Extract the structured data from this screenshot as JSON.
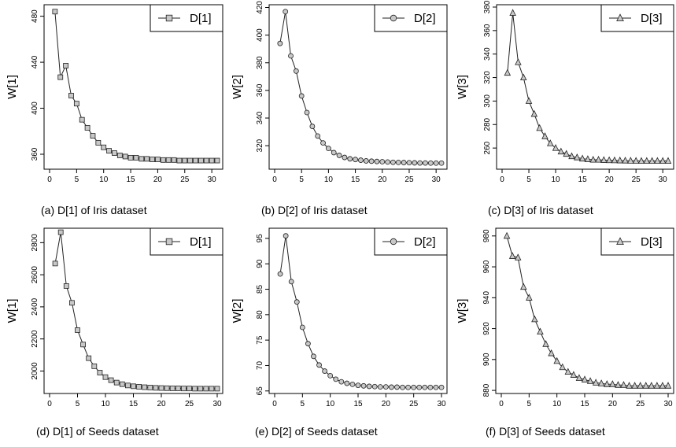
{
  "chart_data": [
    {
      "type": "line",
      "caption": "(a) D[1] of Iris dataset",
      "ylabel": "W[1]",
      "legend": "D[1]",
      "marker": "square",
      "xlim": [
        0,
        31
      ],
      "ylim": [
        347,
        490
      ],
      "xticks": [
        0,
        5,
        10,
        15,
        20,
        25,
        30
      ],
      "yticks": [
        360,
        400,
        440,
        480
      ],
      "x": [
        1,
        2,
        3,
        4,
        5,
        6,
        7,
        8,
        9,
        10,
        11,
        12,
        13,
        14,
        15,
        16,
        17,
        18,
        19,
        20,
        21,
        22,
        23,
        24,
        25,
        26,
        27,
        28,
        29,
        30,
        31
      ],
      "values": [
        484,
        427,
        437,
        411,
        404,
        390,
        383,
        376,
        370,
        366,
        363,
        361,
        359,
        358,
        357,
        357,
        356,
        356,
        355.5,
        355.5,
        355,
        355,
        355,
        354.5,
        354.5,
        354.5,
        354.5,
        354.5,
        354.5,
        354.5,
        354.5
      ]
    },
    {
      "type": "line",
      "caption": "(b) D[2] of Iris dataset",
      "ylabel": "W[2]",
      "legend": "D[2]",
      "marker": "circle",
      "xlim": [
        0,
        31
      ],
      "ylim": [
        303,
        422
      ],
      "xticks": [
        0,
        5,
        10,
        15,
        20,
        25,
        30
      ],
      "yticks": [
        320,
        340,
        360,
        380,
        400,
        420
      ],
      "x": [
        1,
        2,
        3,
        4,
        5,
        6,
        7,
        8,
        9,
        10,
        11,
        12,
        13,
        14,
        15,
        16,
        17,
        18,
        19,
        20,
        21,
        22,
        23,
        24,
        25,
        26,
        27,
        28,
        29,
        30,
        31
      ],
      "values": [
        394,
        417,
        385,
        374,
        356,
        344,
        334,
        327,
        322,
        318,
        315,
        313,
        311.5,
        310.5,
        310,
        309.5,
        309,
        308.8,
        308.6,
        308.4,
        308.2,
        308,
        307.9,
        307.8,
        307.7,
        307.6,
        307.5,
        307.5,
        307.4,
        307.4,
        307.4
      ]
    },
    {
      "type": "line",
      "caption": "(c) D[3] of Iris dataset",
      "ylabel": "W[3]",
      "legend": "D[3]",
      "marker": "triangle",
      "xlim": [
        0,
        31
      ],
      "ylim": [
        242,
        382
      ],
      "xticks": [
        0,
        5,
        10,
        15,
        20,
        25,
        30
      ],
      "yticks": [
        260,
        280,
        300,
        320,
        340,
        360,
        380
      ],
      "x": [
        1,
        2,
        3,
        4,
        5,
        6,
        7,
        8,
        9,
        10,
        11,
        12,
        13,
        14,
        15,
        16,
        17,
        18,
        19,
        20,
        21,
        22,
        23,
        24,
        25,
        26,
        27,
        28,
        29,
        30,
        31
      ],
      "values": [
        324,
        375,
        333,
        320,
        300,
        289,
        277,
        270,
        264,
        260,
        257,
        255,
        253,
        252,
        251,
        250.5,
        250,
        250,
        249.8,
        249.6,
        249.5,
        249.4,
        249.3,
        249.2,
        249.1,
        249,
        249,
        249,
        249,
        249,
        249
      ]
    },
    {
      "type": "line",
      "caption": "(d) D[1] of Seeds dataset",
      "ylabel": "W[1]",
      "legend": "D[1]",
      "marker": "square",
      "xlim": [
        0,
        30
      ],
      "ylim": [
        1860,
        2890
      ],
      "xticks": [
        0,
        5,
        10,
        15,
        20,
        25,
        30
      ],
      "yticks": [
        2000,
        2200,
        2400,
        2600,
        2800
      ],
      "x": [
        1,
        2,
        3,
        4,
        5,
        6,
        7,
        8,
        9,
        10,
        11,
        12,
        13,
        14,
        15,
        16,
        17,
        18,
        19,
        20,
        21,
        22,
        23,
        24,
        25,
        26,
        27,
        28,
        29,
        30
      ],
      "values": [
        2670,
        2865,
        2530,
        2425,
        2255,
        2165,
        2080,
        2030,
        1990,
        1962,
        1943,
        1928,
        1918,
        1910,
        1905,
        1902,
        1899,
        1897,
        1895,
        1894,
        1893,
        1892,
        1892,
        1891,
        1891,
        1890,
        1890,
        1890,
        1890,
        1890
      ]
    },
    {
      "type": "line",
      "caption": "(e) D[2] of Seeds dataset",
      "ylabel": "W[2]",
      "legend": "D[2]",
      "marker": "circle",
      "xlim": [
        0,
        30
      ],
      "ylim": [
        64.5,
        97
      ],
      "xticks": [
        0,
        5,
        10,
        15,
        20,
        25,
        30
      ],
      "yticks": [
        65,
        70,
        75,
        80,
        85,
        90,
        95
      ],
      "x": [
        1,
        2,
        3,
        4,
        5,
        6,
        7,
        8,
        9,
        10,
        11,
        12,
        13,
        14,
        15,
        16,
        17,
        18,
        19,
        20,
        21,
        22,
        23,
        24,
        25,
        26,
        27,
        28,
        29,
        30
      ],
      "values": [
        88,
        95.5,
        86.5,
        82.5,
        77.5,
        74.3,
        71.8,
        70.1,
        68.9,
        68,
        67.3,
        66.8,
        66.5,
        66.3,
        66.1,
        66,
        65.9,
        65.85,
        65.8,
        65.8,
        65.75,
        65.75,
        65.7,
        65.7,
        65.7,
        65.7,
        65.7,
        65.7,
        65.7,
        65.7
      ]
    },
    {
      "type": "line",
      "caption": "(f) D[3] of Seeds dataset",
      "ylabel": "W[3]",
      "legend": "D[3]",
      "marker": "triangle",
      "xlim": [
        0,
        30
      ],
      "ylim": [
        878,
        985
      ],
      "xticks": [
        0,
        5,
        10,
        15,
        20,
        25,
        30
      ],
      "yticks": [
        880,
        900,
        920,
        940,
        960,
        980
      ],
      "x": [
        1,
        2,
        3,
        4,
        5,
        6,
        7,
        8,
        9,
        10,
        11,
        12,
        13,
        14,
        15,
        16,
        17,
        18,
        19,
        20,
        21,
        22,
        23,
        24,
        25,
        26,
        27,
        28,
        29,
        30
      ],
      "values": [
        980,
        967,
        966,
        947,
        940,
        926,
        918,
        910,
        904,
        899,
        895,
        892,
        890,
        888,
        887,
        886,
        885,
        884.5,
        884,
        884,
        883.5,
        883.5,
        883,
        883,
        883,
        883,
        883,
        883,
        883,
        883
      ]
    }
  ]
}
